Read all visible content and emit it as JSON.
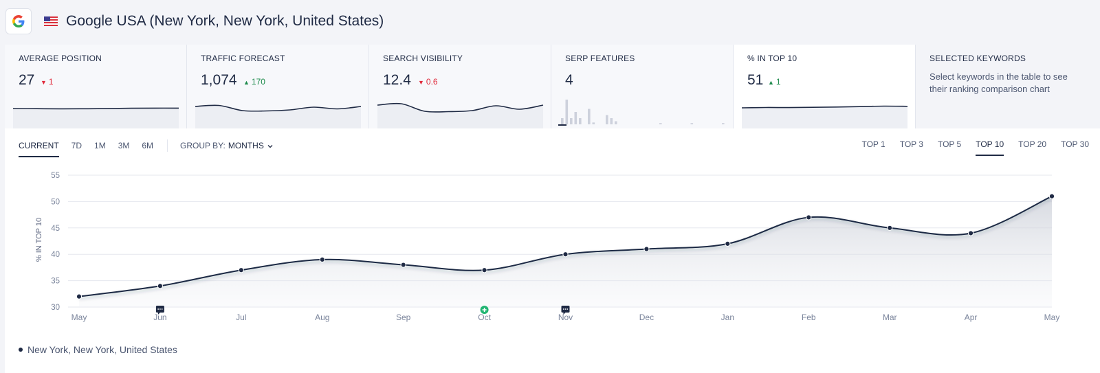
{
  "header": {
    "title": "Google USA (New York, New York, United States)",
    "engine_icon": "google-logo-icon",
    "flag_icon": "us-flag-icon"
  },
  "cards": [
    {
      "label": "AVERAGE POSITION",
      "value": "27",
      "delta": "1",
      "delta_dir": "down",
      "spark": [
        9,
        9.2,
        9.4,
        9.3,
        9.1,
        8.6,
        8.4,
        8.4
      ]
    },
    {
      "label": "TRAFFIC FORECAST",
      "value": "1,074",
      "delta": "170",
      "delta_dir": "up",
      "spark": [
        6,
        4.5,
        12,
        12.5,
        11,
        7,
        9.5,
        6
      ]
    },
    {
      "label": "SEARCH VISIBILITY",
      "value": "12.4",
      "delta": "0.6",
      "delta_dir": "down",
      "spark": [
        4,
        2,
        13,
        13.5,
        12,
        5,
        10,
        4
      ]
    },
    {
      "label": "SERP FEATURES",
      "value": "4",
      "bars": [
        1,
        4,
        1,
        2,
        1,
        0,
        2.5,
        0.3,
        0,
        0,
        1.5,
        1,
        0.5,
        0,
        0,
        0,
        0,
        0,
        0,
        0,
        0,
        0,
        0.2,
        0,
        0,
        0,
        0,
        0,
        0,
        0.2,
        0,
        0,
        0,
        0,
        0,
        0,
        0.2
      ]
    },
    {
      "label": "% IN TOP 10",
      "value": "51",
      "delta": "1",
      "delta_dir": "up",
      "spark": [
        8,
        7.5,
        7.6,
        7.2,
        6.8,
        6.2,
        5.5,
        5.8
      ]
    },
    {
      "label": "SELECTED KEYWORDS",
      "description": "Select keywords in the table to see their ranking comparison chart"
    }
  ],
  "period_tabs": [
    "CURRENT",
    "7D",
    "1M",
    "3M",
    "6M"
  ],
  "selected_period": "CURRENT",
  "group_by": {
    "label": "GROUP BY:",
    "value": "MONTHS"
  },
  "top_tabs": [
    "TOP 1",
    "TOP 3",
    "TOP 5",
    "TOP 10",
    "TOP 20",
    "TOP 30"
  ],
  "selected_top": "TOP 10",
  "chart_data": {
    "type": "area",
    "ylabel": "% IN TOP 10",
    "xlabel": "",
    "ylim": [
      30,
      55
    ],
    "yticks": [
      30,
      35,
      40,
      45,
      50,
      55
    ],
    "categories": [
      "May",
      "Jun",
      "Jul",
      "Aug",
      "Sep",
      "Oct",
      "Nov",
      "Dec",
      "Jan",
      "Feb",
      "Mar",
      "Apr",
      "May"
    ],
    "series": [
      {
        "name": "New York, New York, United States",
        "values": [
          32,
          34,
          37,
          39,
          38,
          37,
          40,
          41,
          42,
          47,
          45,
          44,
          51
        ]
      }
    ],
    "grid": true,
    "annotations": [
      {
        "x": "Jun",
        "icon": "comment-icon"
      },
      {
        "x": "Oct",
        "icon": "plus-circle-icon"
      },
      {
        "x": "Nov",
        "icon": "comment-icon"
      }
    ]
  },
  "legend": {
    "series_name": "New York, New York, United States"
  },
  "colors": {
    "line": "#1f2a44",
    "grid": "#e5e7ee",
    "up": "#1d8a4b",
    "down": "#e0293a",
    "annotation_green": "#22b573"
  }
}
